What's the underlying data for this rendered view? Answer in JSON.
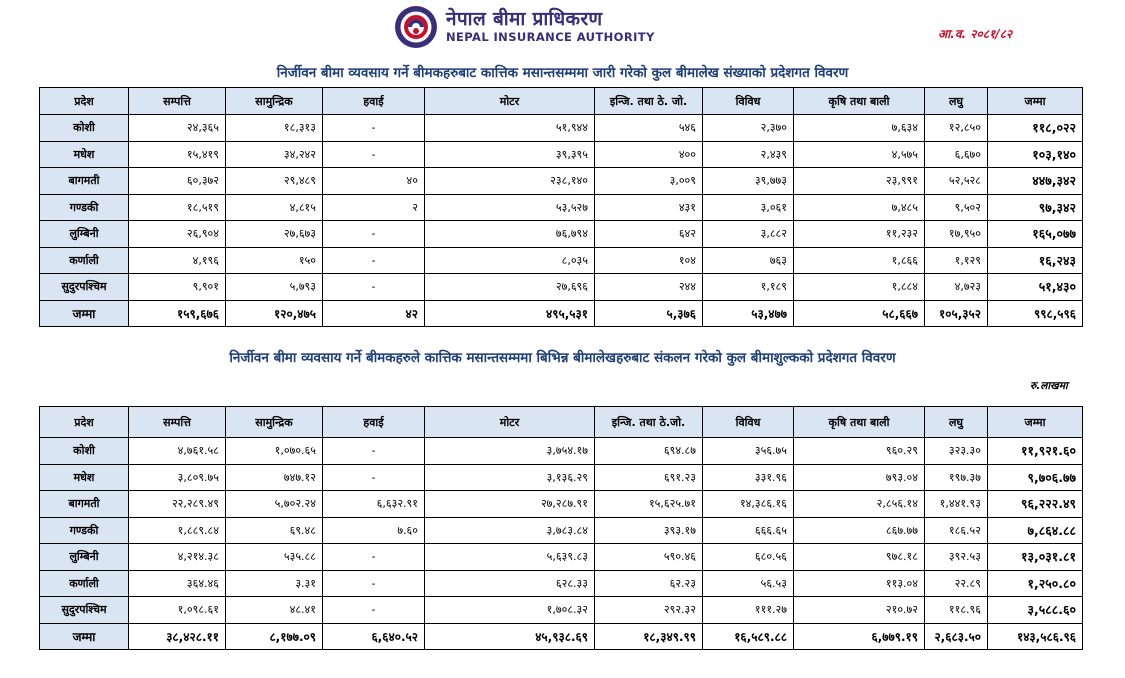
{
  "header": {
    "org_np": "नेपाल बीमा प्राधिकरण",
    "org_en": "NEPAL INSURANCE AUTHORITY",
    "fiscal_year": "आ.व. २०८१/८२"
  },
  "colors": {
    "brand": "#3a2d7a",
    "accent": "#c8102e",
    "caption": "#1f3f7a",
    "header_fill": "#d9e5f3"
  },
  "icons": {
    "logo": "nepal-insurance-authority-logo"
  },
  "table1": {
    "caption": "निर्जीवन बीमा व्यवसाय गर्ने बीमकहरुबाट कात्तिक मसान्तसम्ममा जारी गरेको कुल बीमालेख संख्याको प्रदेशगत विवरण",
    "columns": [
      "प्रदेश",
      "सम्पत्ति",
      "सामुन्द्रिक",
      "हवाई",
      "मोटर",
      "इन्जि. तथा ठे. जो.",
      "विविध",
      "कृषि तथा बाली",
      "लघु",
      "जम्मा"
    ],
    "rows": [
      {
        "province": "कोशी",
        "cells": [
          "२४,३६५",
          "१८,३१३",
          "-",
          "५१,९४४",
          "५४६",
          "२,३७०",
          "७,६३४",
          "१२,८५०",
          "११८,०२२"
        ]
      },
      {
        "province": "मधेश",
        "cells": [
          "१५,४१९",
          "३४,२४२",
          "-",
          "३९,३९५",
          "४००",
          "२,४३९",
          "४,५७५",
          "६,६७०",
          "१०३,१४०"
        ]
      },
      {
        "province": "बागमती",
        "cells": [
          "६०,३७२",
          "२९,४८९",
          "४०",
          "२३८,१४०",
          "३,००९",
          "३९,७७३",
          "२३,९९१",
          "५२,५२८",
          "४४७,३४२"
        ]
      },
      {
        "province": "गण्डकी",
        "cells": [
          "१८,५१९",
          "४,८१५",
          "२",
          "५३,५२७",
          "४३१",
          "३,०६१",
          "७,४८५",
          "९,५०२",
          "९७,३४२"
        ]
      },
      {
        "province": "लुम्बिनी",
        "cells": [
          "२६,९०४",
          "२७,६७३",
          "-",
          "७६,७९४",
          "६४२",
          "३,८८२",
          "११,२३२",
          "१७,९५०",
          "१६५,०७७"
        ]
      },
      {
        "province": "कर्णाली",
        "cells": [
          "४,१९६",
          "१५०",
          "-",
          "८,०३५",
          "१०४",
          "७६३",
          "१,८६६",
          "१,१२९",
          "१६,२४३"
        ]
      },
      {
        "province": "सुदुरपश्चिम",
        "cells": [
          "९,९०१",
          "५,७९३",
          "-",
          "२७,६९६",
          "२४४",
          "१,१८९",
          "१,८८४",
          "४,७२३",
          "५१,४३०"
        ]
      }
    ],
    "total": {
      "label": "जम्मा",
      "cells": [
        "१५९,६७६",
        "१२०,४७५",
        "४२",
        "४९५,५३१",
        "५,३७६",
        "५३,४७७",
        "५८,६६७",
        "१०५,३५२",
        "९९८,५९६"
      ]
    }
  },
  "table2": {
    "caption": "निर्जीवन बीमा व्यवसाय गर्ने बीमकहरुले कात्तिक मसान्तसम्ममा बिभिन्न बीमालेखहरुबाट संकलन गरेको कुल बीमाशुल्कको प्रदेशगत विवरण",
    "unit_note": "रु.लाखमा",
    "columns": [
      "प्रदेश",
      "सम्पत्ति",
      "सामुन्द्रिक",
      "हवाई",
      "मोटर",
      "इन्जि. तथा ठे.जो.",
      "विविध",
      "कृषि तथा बाली",
      "लघु",
      "जम्मा"
    ],
    "rows": [
      {
        "province": "कोशी",
        "cells": [
          "४,७६१.५८",
          "१,०७०.६५",
          "-",
          "३,७५४.१७",
          "६९४.८७",
          "३५६.७५",
          "९६०.२९",
          "३२३.३०",
          "११,९२१.६०"
        ]
      },
      {
        "province": "मधेश",
        "cells": [
          "३,८०९.७५",
          "७४७.१२",
          "-",
          "३,१३६.२९",
          "६९१.२३",
          "३३१.९६",
          "७९३.०४",
          "१९७.३७",
          "९,७०६.७७"
        ]
      },
      {
        "province": "बागमती",
        "cells": [
          "२२,२८९.४९",
          "५,७०२.२४",
          "६,६३२.९१",
          "२७,२८७.९१",
          "१५,६२५.७१",
          "१४,३८६.१६",
          "२,८५६.१४",
          "१,४४१.९३",
          "९६,२२२.४९"
        ]
      },
      {
        "province": "गण्डकी",
        "cells": [
          "१,८८९.८४",
          "६९.४८",
          "७.६०",
          "३,७८३.८४",
          "३९३.१७",
          "६६६.६५",
          "८६७.७७",
          "१८६.५२",
          "७,८६४.८८"
        ]
      },
      {
        "province": "लुम्बिनी",
        "cells": [
          "४,२१४.३८",
          "५३५.८८",
          "-",
          "५,६३९.८३",
          "५९०.४६",
          "६८०.५६",
          "९७८.१८",
          "३९२.५३",
          "१३,०३१.८१"
        ]
      },
      {
        "province": "कर्णाली",
        "cells": [
          "३६४.४६",
          "३.३१",
          "-",
          "६२८.३३",
          "६२.२३",
          "५६.५३",
          "११३.०४",
          "२२.८९",
          "१,२५०.८०"
        ]
      },
      {
        "province": "सुदुरपश्चिम",
        "cells": [
          "१,०९८.६१",
          "४८.४१",
          "-",
          "१,७०८.३२",
          "२९२.३२",
          "१११.२७",
          "२१०.७२",
          "११८.९६",
          "३,५८८.६०"
        ]
      }
    ],
    "total": {
      "label": "जम्मा",
      "cells": [
        "३८,४२८.११",
        "८,१७७.०९",
        "६,६४०.५२",
        "४५,९३८.६९",
        "१८,३४९.९९",
        "१६,५८९.८८",
        "६,७७९.१९",
        "२,६८३.५०",
        "१४३,५८६.९६"
      ]
    }
  }
}
